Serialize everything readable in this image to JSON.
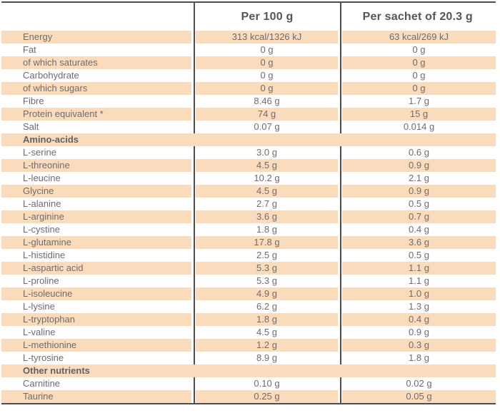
{
  "table": {
    "title": "nutrition-information-table",
    "header": {
      "per100_label": "Per 100 g",
      "sachet_label": "Per sachet of 20.3 g"
    },
    "colors": {
      "accent_row": "#fadcbc",
      "border": "#4e4e50",
      "row_text": "#6c6d70",
      "header_text": "#55565a",
      "section_text": "#606165"
    },
    "rows": [
      {
        "type": "data",
        "label": "Energy",
        "per100": "313 kcal/1326 kJ",
        "sachet": "63 kcal/269 kJ"
      },
      {
        "type": "data",
        "label": "Fat",
        "per100": "0 g",
        "sachet": "0 g"
      },
      {
        "type": "data",
        "label": "of which saturates",
        "per100": "0 g",
        "sachet": "0 g"
      },
      {
        "type": "data",
        "label": "Carbohydrate",
        "per100": "0 g",
        "sachet": "0 g"
      },
      {
        "type": "data",
        "label": "of which sugars",
        "per100": "0 g",
        "sachet": "0 g"
      },
      {
        "type": "data",
        "label": "Fibre",
        "per100": "8.46 g",
        "sachet": "1.7 g"
      },
      {
        "type": "data",
        "label": "Protein equivalent *",
        "per100": "74 g",
        "sachet": "15 g"
      },
      {
        "type": "data",
        "label": "Salt",
        "per100": "0.07 g",
        "sachet": "0.014 g"
      },
      {
        "type": "section",
        "label": "Amino-acids"
      },
      {
        "type": "data",
        "label": "L-serine",
        "per100": "3.0 g",
        "sachet": "0.6 g"
      },
      {
        "type": "data",
        "label": "L-threonine",
        "per100": "4.5 g",
        "sachet": "0.9 g"
      },
      {
        "type": "data",
        "label": "L-leucine",
        "per100": "10.2 g",
        "sachet": "2.1 g"
      },
      {
        "type": "data",
        "label": "Glycine",
        "per100": "4.5 g",
        "sachet": "0.9 g"
      },
      {
        "type": "data",
        "label": "L-alanine",
        "per100": "2.7 g",
        "sachet": "0.5 g"
      },
      {
        "type": "data",
        "label": "L-arginine",
        "per100": "3.6 g",
        "sachet": "0.7 g"
      },
      {
        "type": "data",
        "label": "L-cystine",
        "per100": "1.8 g",
        "sachet": "0.4 g"
      },
      {
        "type": "data",
        "label": "L-glutamine",
        "per100": "17.8 g",
        "sachet": "3.6 g"
      },
      {
        "type": "data",
        "label": "L-histidine",
        "per100": "2.5 g",
        "sachet": "0.5 g"
      },
      {
        "type": "data",
        "label": "L-aspartic acid",
        "per100": "5.3 g",
        "sachet": "1.1 g"
      },
      {
        "type": "data",
        "label": "L-proline",
        "per100": "5.3 g",
        "sachet": "1.1 g"
      },
      {
        "type": "data",
        "label": "L-isoleucine",
        "per100": "4.9 g",
        "sachet": "1.0 g"
      },
      {
        "type": "data",
        "label": "L-lysine",
        "per100": "6.2 g",
        "sachet": "1.3 g"
      },
      {
        "type": "data",
        "label": "L-tryptophan",
        "per100": "1.8 g",
        "sachet": "0.4 g"
      },
      {
        "type": "data",
        "label": "L-valine",
        "per100": "4.5 g",
        "sachet": "0.9 g"
      },
      {
        "type": "data",
        "label": "L-methionine",
        "per100": "1.2 g",
        "sachet": "0.3 g"
      },
      {
        "type": "data",
        "label": "L-tyrosine",
        "per100": "8.9 g",
        "sachet": "1.8 g"
      },
      {
        "type": "section",
        "label": "Other nutrients"
      },
      {
        "type": "data",
        "label": "Carnitine",
        "per100": "0.10 g",
        "sachet": "0.02 g"
      },
      {
        "type": "data",
        "label": "Taurine",
        "per100": "0.25 g",
        "sachet": "0.05 g"
      }
    ]
  }
}
